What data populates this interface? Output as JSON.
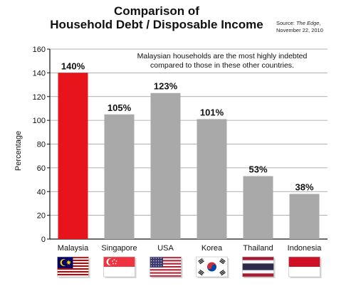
{
  "chart_data": {
    "type": "bar",
    "title": "Comparison of Household Debt / Disposable Income",
    "title_lines": [
      "Comparison of",
      "Household Debt / Disposable Income"
    ],
    "source": "Source: The Edge, November 22, 2010",
    "source_lines": [
      "Source: ",
      "The Edge",
      ",",
      "November 22, 2010"
    ],
    "annotation_lines": [
      "Malaysian households are the most highly indebted",
      "compared to those in these other countries."
    ],
    "ylabel": "Percentage",
    "xlabel": "",
    "ylim": [
      0,
      160
    ],
    "yticks": [
      0,
      20,
      40,
      60,
      80,
      100,
      120,
      140,
      160
    ],
    "grid": true,
    "categories": [
      "Malaysia",
      "Singapore",
      "USA",
      "Korea",
      "Thailand",
      "Indonesia"
    ],
    "values": [
      140,
      105,
      123,
      101,
      53,
      38
    ],
    "data_labels": [
      "140%",
      "105%",
      "123%",
      "101%",
      "53%",
      "38%"
    ],
    "colors": [
      "#e8141b",
      "#a9a9a9",
      "#a9a9a9",
      "#a9a9a9",
      "#a9a9a9",
      "#a9a9a9"
    ],
    "flags": [
      "malaysia-flag-icon",
      "singapore-flag-icon",
      "usa-flag-icon",
      "korea-flag-icon",
      "thailand-flag-icon",
      "indonesia-flag-icon"
    ]
  }
}
